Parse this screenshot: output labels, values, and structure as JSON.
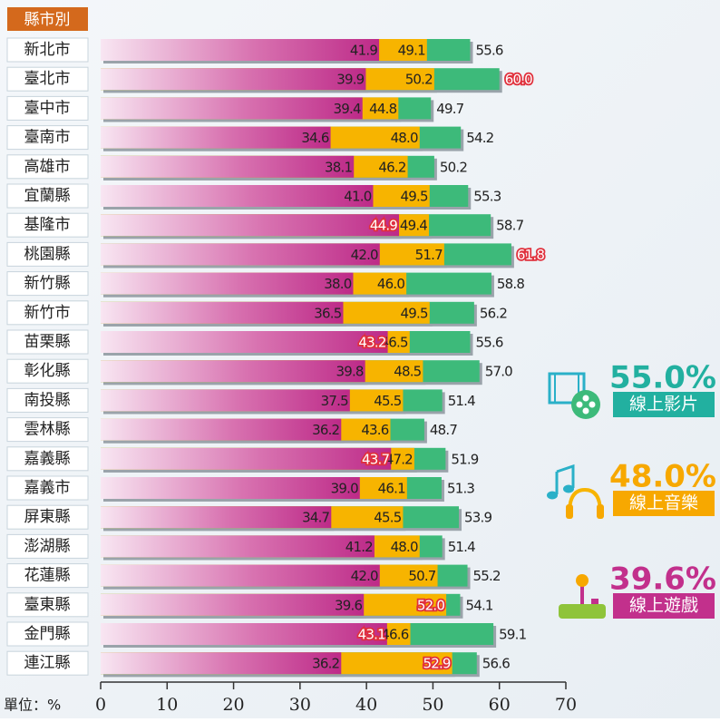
{
  "chart_data": {
    "type": "overlap-bar",
    "header": "縣市別",
    "unit_label": "單位：%",
    "categories": [
      "新北市",
      "臺北市",
      "臺中市",
      "臺南市",
      "高雄市",
      "宜蘭縣",
      "基隆市",
      "桃園縣",
      "新竹縣",
      "新竹市",
      "苗栗縣",
      "彰化縣",
      "南投縣",
      "雲林縣",
      "嘉義縣",
      "嘉義市",
      "屏東縣",
      "澎湖縣",
      "花蓮縣",
      "臺東縣",
      "金門縣",
      "連江縣"
    ],
    "series": [
      {
        "name": "線上影片",
        "color": "#3dba7a",
        "overall": 55.0,
        "overall_label": "55.0%",
        "overall_color": "#22b0a0",
        "values": [
          55.6,
          60.0,
          49.7,
          54.2,
          50.2,
          55.3,
          58.7,
          61.8,
          58.8,
          56.2,
          55.6,
          57.0,
          51.4,
          48.7,
          51.9,
          51.3,
          53.9,
          51.4,
          55.2,
          54.1,
          59.1,
          56.6
        ],
        "value_labels": [
          "55.6",
          "60.0",
          "49.7",
          "54.2",
          "50.2",
          "55.3",
          "58.7",
          "61.8",
          "58.8",
          "56.2",
          "55.6",
          "57.0",
          "51.4",
          "48.7",
          "51.9",
          "51.3",
          "53.9",
          "51.4",
          "55.2",
          "54.1",
          "59.1",
          "56.6"
        ],
        "highlight": [
          1,
          7
        ]
      },
      {
        "name": "線上音樂",
        "color": "#f7b400",
        "overall": 48.0,
        "overall_label": "48.0%",
        "overall_color": "#f7a800",
        "values": [
          49.1,
          50.2,
          44.8,
          48.0,
          46.2,
          49.5,
          49.4,
          51.7,
          46.0,
          49.5,
          46.5,
          48.5,
          45.5,
          43.6,
          47.2,
          46.1,
          45.5,
          48.0,
          50.7,
          52.0,
          46.6,
          52.9
        ],
        "value_labels": [
          "49.1",
          "50.2",
          "44.8",
          "48.0",
          "46.2",
          "49.5",
          "49.4",
          "51.7",
          "46.0",
          "49.5",
          "46.5",
          "48.5",
          "45.5",
          "43.6",
          "47.2",
          "46.1",
          "45.5",
          "48.0",
          "50.7",
          "52.0",
          "46.6",
          "52.9"
        ],
        "highlight": [
          19,
          21
        ]
      },
      {
        "name": "線上遊戲",
        "color": "#c2308c",
        "overall": 39.6,
        "overall_label": "39.6%",
        "overall_color": "#c2308c",
        "values": [
          41.9,
          39.9,
          39.4,
          34.6,
          38.1,
          41.0,
          44.9,
          42.0,
          38.0,
          36.5,
          43.2,
          39.8,
          37.5,
          36.2,
          43.7,
          39.0,
          34.7,
          41.2,
          42.0,
          39.6,
          43.1,
          36.2
        ],
        "value_labels": [
          "41.9",
          "39.9",
          "39.4",
          "34.6",
          "38.1",
          "41.0",
          "44.9",
          "42.0",
          "38.0",
          "36.5",
          "43.2",
          "39.8",
          "37.5",
          "36.2",
          "43.7",
          "39.0",
          "34.7",
          "41.2",
          "42.0",
          "39.6",
          "43.1",
          "36.2"
        ],
        "highlight": [
          6,
          10,
          14,
          20
        ]
      }
    ],
    "xlim": [
      0,
      70
    ],
    "xticks": [
      0,
      10,
      20,
      30,
      40,
      50,
      60,
      70
    ]
  }
}
